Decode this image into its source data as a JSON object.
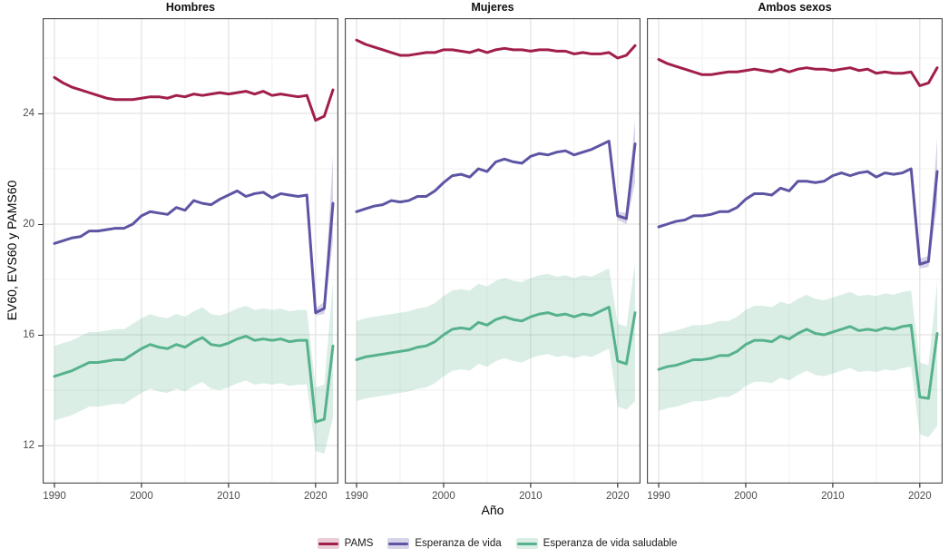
{
  "chart_data": {
    "type": "line",
    "title": "",
    "xlabel": "Año",
    "ylabel": "EV60, EVS60 y PAMS60",
    "x_ticks": [
      1990,
      2000,
      2010,
      2020
    ],
    "y_ticks": [
      24,
      20,
      16,
      12
    ],
    "xlim": [
      1988.6,
      2023.4
    ],
    "ylim": [
      10.6,
      27.45
    ],
    "grid": {
      "major_x": [
        1990,
        2000,
        2010,
        2020
      ],
      "minor_x": [
        1995,
        2005,
        2015
      ],
      "major_y": [
        24,
        20,
        16,
        12
      ],
      "minor_y": [
        26,
        22,
        18,
        14
      ]
    },
    "legend_position": "bottom",
    "legend": [
      {
        "id": "pams",
        "label": "PAMS",
        "color": "#A11E4B",
        "ribbon": "rgba(161,30,75,0.22)"
      },
      {
        "id": "ev",
        "label": "Esperanza de vida",
        "color": "#5D55A4",
        "ribbon": "rgba(93,85,164,0.25)"
      },
      {
        "id": "evs",
        "label": "Esperanza de vida saludable",
        "color": "#56B28C",
        "ribbon": "rgba(86,178,140,0.22)"
      }
    ],
    "years": [
      1990,
      1991,
      1992,
      1993,
      1994,
      1995,
      1996,
      1997,
      1998,
      1999,
      2000,
      2001,
      2002,
      2003,
      2004,
      2005,
      2006,
      2007,
      2008,
      2009,
      2010,
      2011,
      2012,
      2013,
      2014,
      2015,
      2016,
      2017,
      2018,
      2019,
      2020,
      2021,
      2022
    ],
    "facets": [
      {
        "label": "Hombres",
        "pams": [
          25.3,
          25.1,
          24.95,
          24.85,
          24.75,
          24.65,
          24.55,
          24.5,
          24.5,
          24.5,
          24.55,
          24.6,
          24.6,
          24.55,
          24.65,
          24.6,
          24.7,
          24.65,
          24.7,
          24.75,
          24.7,
          24.75,
          24.8,
          24.7,
          24.8,
          24.65,
          24.7,
          24.65,
          24.6,
          24.65,
          23.75,
          23.9,
          24.85
        ],
        "ev": [
          19.3,
          19.4,
          19.5,
          19.55,
          19.75,
          19.75,
          19.8,
          19.85,
          19.85,
          20.0,
          20.3,
          20.45,
          20.4,
          20.35,
          20.6,
          20.5,
          20.85,
          20.75,
          20.7,
          20.9,
          21.05,
          21.2,
          21.0,
          21.1,
          21.15,
          20.95,
          21.1,
          21.05,
          21.0,
          21.05,
          16.8,
          16.95,
          20.75
        ],
        "evs": [
          14.5,
          14.6,
          14.7,
          14.85,
          15.0,
          15.0,
          15.05,
          15.1,
          15.1,
          15.3,
          15.5,
          15.65,
          15.55,
          15.5,
          15.65,
          15.55,
          15.75,
          15.9,
          15.65,
          15.6,
          15.7,
          15.85,
          15.95,
          15.8,
          15.85,
          15.8,
          15.85,
          15.75,
          15.8,
          15.8,
          12.85,
          12.95,
          15.6
        ],
        "evs_band": {
          "lo": [
            12.9,
            13.0,
            13.1,
            13.25,
            13.4,
            13.4,
            13.45,
            13.5,
            13.5,
            13.7,
            13.9,
            14.05,
            13.95,
            13.9,
            14.05,
            13.95,
            14.15,
            14.3,
            14.05,
            14.0,
            14.1,
            14.25,
            14.35,
            14.2,
            14.25,
            14.2,
            14.25,
            14.15,
            14.2,
            14.2,
            11.8,
            11.7,
            13.0
          ],
          "hi": [
            15.6,
            15.7,
            15.8,
            15.95,
            16.1,
            16.1,
            16.15,
            16.2,
            16.2,
            16.4,
            16.6,
            16.75,
            16.65,
            16.6,
            16.75,
            16.65,
            16.85,
            17.0,
            16.75,
            16.7,
            16.8,
            16.95,
            17.05,
            16.9,
            16.95,
            16.9,
            16.95,
            16.85,
            16.9,
            16.9,
            14.1,
            14.2,
            17.9
          ]
        },
        "ev_band": {
          "years": [
            2019,
            2020,
            2021,
            2022
          ],
          "lo": [
            21.05,
            16.7,
            16.75,
            19.4
          ],
          "hi": [
            21.05,
            16.95,
            17.2,
            22.5
          ]
        }
      },
      {
        "label": "Mujeres",
        "pams": [
          26.65,
          26.5,
          26.4,
          26.3,
          26.2,
          26.1,
          26.1,
          26.15,
          26.2,
          26.2,
          26.3,
          26.3,
          26.25,
          26.2,
          26.3,
          26.2,
          26.3,
          26.35,
          26.3,
          26.3,
          26.25,
          26.3,
          26.3,
          26.25,
          26.25,
          26.15,
          26.2,
          26.15,
          26.15,
          26.2,
          26.0,
          26.1,
          26.45
        ],
        "ev": [
          20.45,
          20.55,
          20.65,
          20.7,
          20.85,
          20.8,
          20.85,
          21.0,
          21.0,
          21.2,
          21.5,
          21.75,
          21.8,
          21.7,
          22.0,
          21.9,
          22.25,
          22.35,
          22.25,
          22.2,
          22.45,
          22.55,
          22.5,
          22.6,
          22.65,
          22.5,
          22.6,
          22.7,
          22.85,
          23.0,
          20.3,
          20.2,
          22.9
        ],
        "evs": [
          15.1,
          15.2,
          15.25,
          15.3,
          15.35,
          15.4,
          15.45,
          15.55,
          15.6,
          15.75,
          16.0,
          16.2,
          16.25,
          16.2,
          16.45,
          16.35,
          16.55,
          16.65,
          16.55,
          16.5,
          16.65,
          16.75,
          16.8,
          16.7,
          16.75,
          16.65,
          16.75,
          16.7,
          16.85,
          17.0,
          15.05,
          14.95,
          16.8
        ],
        "evs_band": {
          "lo": [
            13.6,
            13.7,
            13.75,
            13.8,
            13.85,
            13.9,
            13.95,
            14.05,
            14.1,
            14.25,
            14.5,
            14.7,
            14.75,
            14.7,
            14.95,
            14.85,
            15.05,
            15.15,
            15.05,
            15.0,
            15.15,
            15.25,
            15.3,
            15.2,
            15.25,
            15.15,
            15.25,
            15.2,
            15.35,
            15.5,
            13.4,
            13.3,
            13.6
          ],
          "hi": [
            16.5,
            16.6,
            16.65,
            16.7,
            16.75,
            16.8,
            16.85,
            16.95,
            17.0,
            17.15,
            17.4,
            17.6,
            17.65,
            17.6,
            17.85,
            17.75,
            17.95,
            18.05,
            17.95,
            17.9,
            18.05,
            18.15,
            18.2,
            18.1,
            18.15,
            18.05,
            18.15,
            18.1,
            18.25,
            18.4,
            16.4,
            16.3,
            18.6
          ]
        },
        "ev_band": {
          "years": [
            2019,
            2020,
            2021,
            2022
          ],
          "lo": [
            23.0,
            20.15,
            20.0,
            21.5
          ],
          "hi": [
            23.0,
            20.45,
            20.4,
            23.8
          ]
        }
      },
      {
        "label": "Ambos sexos",
        "pams": [
          25.95,
          25.8,
          25.7,
          25.6,
          25.5,
          25.4,
          25.4,
          25.45,
          25.5,
          25.5,
          25.55,
          25.6,
          25.55,
          25.5,
          25.6,
          25.5,
          25.6,
          25.65,
          25.6,
          25.6,
          25.55,
          25.6,
          25.65,
          25.55,
          25.6,
          25.45,
          25.5,
          25.45,
          25.45,
          25.5,
          25.0,
          25.1,
          25.65
        ],
        "ev": [
          19.9,
          20.0,
          20.1,
          20.15,
          20.3,
          20.3,
          20.35,
          20.45,
          20.45,
          20.6,
          20.9,
          21.1,
          21.1,
          21.05,
          21.3,
          21.2,
          21.55,
          21.55,
          21.5,
          21.55,
          21.75,
          21.85,
          21.75,
          21.85,
          21.9,
          21.7,
          21.85,
          21.8,
          21.85,
          22.0,
          18.55,
          18.65,
          21.9
        ],
        "evs": [
          14.75,
          14.85,
          14.9,
          15.0,
          15.1,
          15.1,
          15.15,
          15.25,
          15.25,
          15.4,
          15.65,
          15.8,
          15.8,
          15.75,
          15.95,
          15.85,
          16.05,
          16.2,
          16.05,
          16.0,
          16.1,
          16.2,
          16.3,
          16.15,
          16.2,
          16.15,
          16.25,
          16.2,
          16.3,
          16.35,
          13.75,
          13.7,
          16.05
        ],
        "evs_band": {
          "lo": [
            13.25,
            13.35,
            13.4,
            13.5,
            13.6,
            13.6,
            13.65,
            13.75,
            13.75,
            13.9,
            14.15,
            14.3,
            14.3,
            14.25,
            14.45,
            14.35,
            14.55,
            14.7,
            14.55,
            14.5,
            14.6,
            14.7,
            14.8,
            14.65,
            14.7,
            14.65,
            14.75,
            14.7,
            14.8,
            14.85,
            12.4,
            12.3,
            12.7
          ],
          "hi": [
            16.0,
            16.1,
            16.15,
            16.25,
            16.35,
            16.35,
            16.4,
            16.5,
            16.5,
            16.65,
            16.9,
            17.05,
            17.05,
            17.0,
            17.2,
            17.1,
            17.3,
            17.45,
            17.3,
            17.25,
            17.35,
            17.45,
            17.55,
            17.4,
            17.45,
            17.4,
            17.5,
            17.45,
            17.55,
            17.6,
            15.0,
            14.9,
            17.9
          ]
        },
        "ev_band": {
          "years": [
            2019,
            2020,
            2021,
            2022
          ],
          "lo": [
            22.0,
            18.4,
            18.45,
            20.7
          ],
          "hi": [
            22.0,
            18.75,
            18.85,
            23.1
          ]
        }
      }
    ]
  }
}
